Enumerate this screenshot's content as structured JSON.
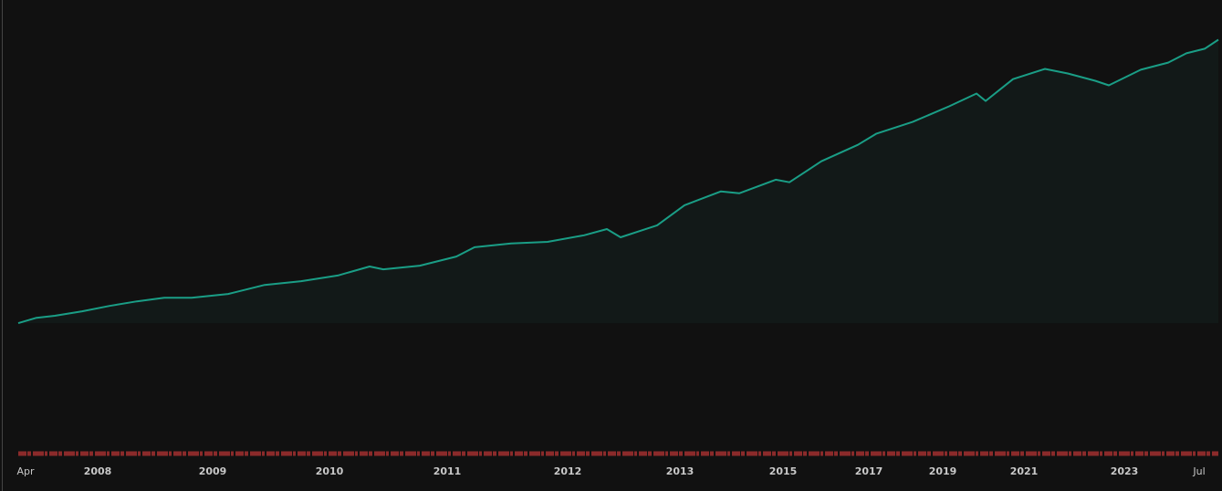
{
  "chart_data": {
    "type": "area",
    "x": [
      0,
      20,
      40,
      70,
      100,
      130,
      160,
      190,
      230,
      270,
      310,
      350,
      385,
      400,
      440,
      480,
      500,
      540,
      580,
      620,
      645,
      660,
      700,
      730,
      770,
      790,
      830,
      845,
      880,
      920,
      940,
      980,
      1020,
      1050,
      1060,
      1090,
      1125,
      1150,
      1180,
      1195,
      1230,
      1260,
      1280,
      1300,
      1315
    ],
    "values": [
      0,
      1.9,
      2.6,
      4.2,
      6.1,
      7.7,
      9.0,
      9.0,
      10.3,
      13.5,
      14.8,
      16.8,
      20.0,
      19.0,
      20.3,
      23.5,
      26.8,
      28.1,
      28.7,
      31.0,
      33.2,
      30.3,
      34.5,
      41.6,
      46.5,
      45.8,
      50.6,
      49.7,
      57.1,
      62.9,
      66.8,
      71.0,
      76.5,
      81.0,
      78.4,
      86.1,
      89.7,
      88.1,
      85.5,
      83.9,
      89.4,
      91.9,
      95.2,
      96.8,
      100
    ],
    "color": "#1a9e86",
    "xlim": [
      0,
      1315
    ],
    "ylim": [
      -46,
      114
    ],
    "xticks": [
      {
        "value": 8,
        "label": "Apr"
      },
      {
        "value": 87,
        "label": "2008"
      },
      {
        "value": 213,
        "label": "2009"
      },
      {
        "value": 341,
        "label": "2010"
      },
      {
        "value": 470,
        "label": "2011"
      },
      {
        "value": 602,
        "label": "2012"
      },
      {
        "value": 725,
        "label": "2013"
      },
      {
        "value": 838,
        "label": "2015"
      },
      {
        "value": 932,
        "label": "2017"
      },
      {
        "value": 1013,
        "label": "2019"
      },
      {
        "value": 1102,
        "label": "2021"
      },
      {
        "value": 1212,
        "label": "2023"
      },
      {
        "value": 1294,
        "label": "Jul"
      }
    ]
  }
}
